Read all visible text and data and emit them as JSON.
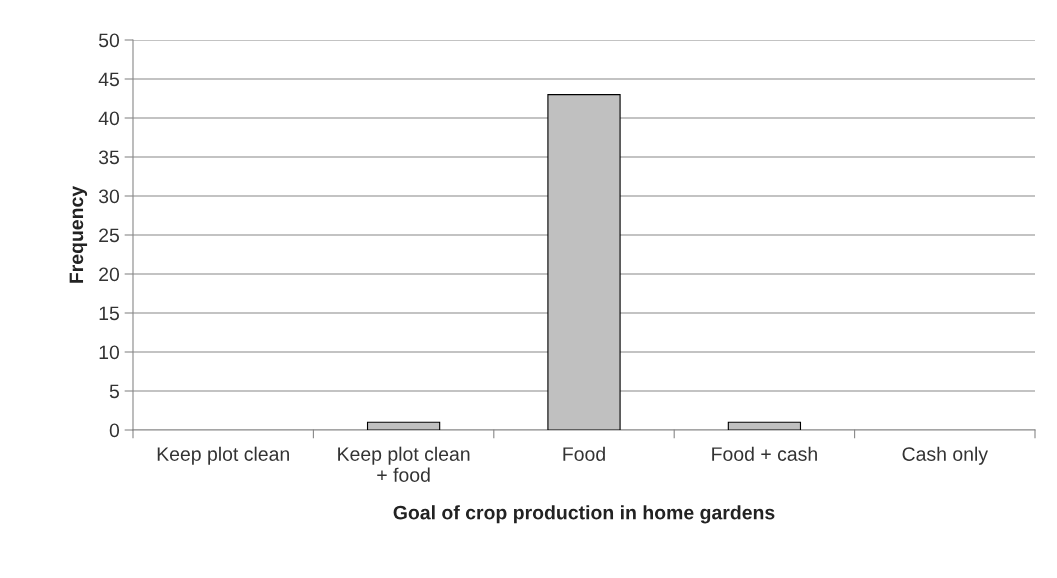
{
  "chart_data": {
    "type": "bar",
    "xlabel": "Goal of crop production in home gardens",
    "ylabel": "Frequency",
    "categories": [
      "Keep plot clean",
      "Keep plot clean\n+ food",
      "Food",
      "Food + cash",
      "Cash only"
    ],
    "values": [
      0,
      1,
      43,
      1,
      0
    ],
    "color": "#c0c0c0",
    "ylim": [
      0,
      50
    ],
    "yticks": [
      0,
      5,
      10,
      15,
      20,
      25,
      30,
      35,
      40,
      45,
      50
    ],
    "grid": "y",
    "legend": false
  }
}
